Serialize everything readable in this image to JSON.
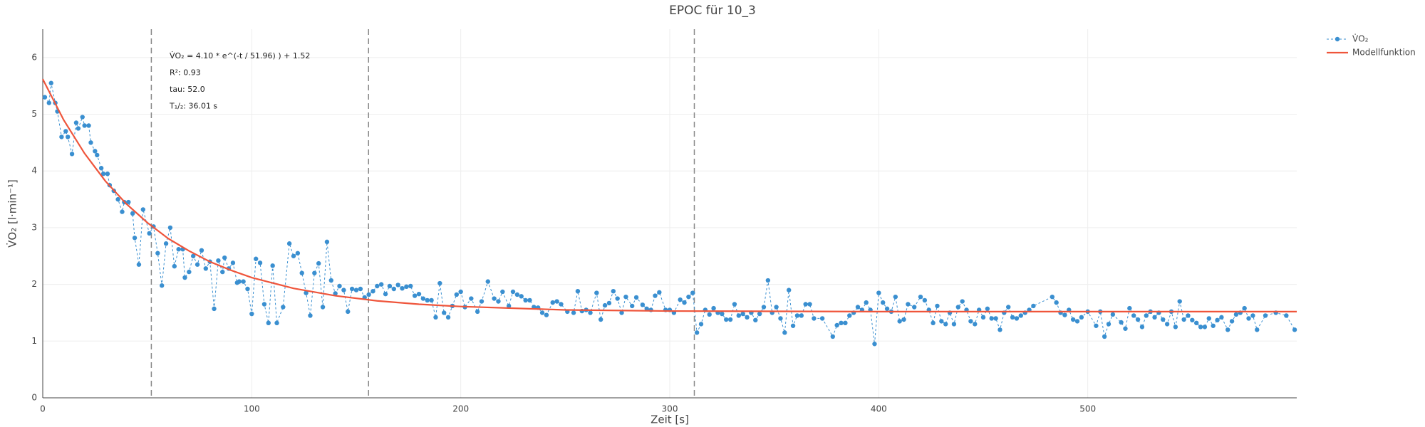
{
  "chart_data": {
    "type": "scatter",
    "title": "EPOC für 10_3",
    "xlabel": "Zeit [s]",
    "ylabel": "V̇O₂ [l·min⁻¹]",
    "xlim": [
      0,
      600
    ],
    "ylim": [
      0,
      6.5
    ],
    "xticks": [
      0,
      100,
      200,
      300,
      400,
      500
    ],
    "yticks": [
      0,
      1,
      2,
      3,
      4,
      5,
      6
    ],
    "grid": true,
    "legend": "top-right",
    "vlines": [
      51.96,
      155.88,
      311.76
    ],
    "annotations": [
      "V̇O₂ = 4.10 * e^(-t / 51.96) ) + 1.52",
      "R²: 0.93",
      "tau: 52.0",
      "T₁/₂: 36.01 s"
    ],
    "series": [
      {
        "name": "V̇O₂",
        "color": "#3a8fd0",
        "mode": "lines+markers",
        "x": [
          1,
          3,
          4,
          6,
          7,
          9,
          11,
          12,
          14,
          16,
          17,
          19,
          20,
          22,
          23,
          25,
          26,
          28,
          29,
          31,
          32,
          34,
          36,
          38,
          39,
          41,
          43,
          44,
          46,
          48,
          51,
          53,
          55,
          57,
          59,
          61,
          63,
          65,
          67,
          68,
          70,
          72,
          74,
          76,
          78,
          80,
          82,
          84,
          86,
          87,
          89,
          91,
          93,
          94,
          96,
          98,
          100,
          102,
          104,
          106,
          108,
          110,
          112,
          115,
          118,
          120,
          122,
          124,
          126,
          128,
          130,
          132,
          134,
          136,
          138,
          140,
          142,
          144,
          146,
          148,
          150,
          152,
          154,
          156,
          158,
          160,
          162,
          164,
          166,
          168,
          170,
          172,
          174,
          176,
          178,
          180,
          182,
          184,
          186,
          188,
          190,
          192,
          194,
          196,
          198,
          200,
          202,
          205,
          208,
          210,
          213,
          216,
          218,
          220,
          223,
          225,
          227,
          229,
          231,
          233,
          235,
          237,
          239,
          241,
          244,
          246,
          248,
          251,
          254,
          256,
          258,
          260,
          262,
          265,
          267,
          269,
          271,
          273,
          275,
          277,
          279,
          282,
          284,
          287,
          289,
          291,
          293,
          295,
          298,
          300,
          302,
          305,
          307,
          309,
          311,
          313,
          315,
          317,
          319,
          321,
          323,
          325,
          327,
          329,
          331,
          333,
          335,
          337,
          339,
          341,
          343,
          345,
          347,
          349,
          351,
          353,
          355,
          357,
          359,
          361,
          363,
          365,
          367,
          369,
          373,
          378,
          380,
          382,
          384,
          386,
          388,
          390,
          392,
          394,
          396,
          398,
          400,
          402,
          404,
          406,
          408,
          410,
          412,
          414,
          417,
          420,
          422,
          424,
          426,
          428,
          430,
          432,
          434,
          436,
          438,
          440,
          442,
          444,
          446,
          448,
          450,
          452,
          454,
          456,
          458,
          460,
          462,
          464,
          466,
          468,
          470,
          472,
          474,
          483,
          485,
          487,
          489,
          491,
          493,
          495,
          497,
          500,
          504,
          506,
          508,
          510,
          512,
          516,
          518,
          520,
          522,
          524,
          526,
          528,
          530,
          532,
          534,
          536,
          538,
          540,
          542,
          544,
          546,
          548,
          550,
          552,
          554,
          556,
          558,
          560,
          562,
          564,
          567,
          569,
          571,
          573,
          575,
          577,
          579,
          581,
          585,
          590,
          595,
          599
        ],
        "values": [
          5.3,
          5.2,
          5.55,
          5.2,
          5.05,
          4.6,
          4.7,
          4.6,
          4.3,
          4.85,
          4.75,
          4.95,
          4.8,
          4.8,
          4.5,
          4.35,
          4.28,
          4.05,
          3.95,
          3.95,
          3.75,
          3.65,
          3.5,
          3.28,
          3.45,
          3.45,
          3.25,
          2.82,
          2.35,
          3.32,
          2.9,
          3.02,
          2.55,
          1.98,
          2.72,
          3.0,
          2.32,
          2.62,
          2.62,
          2.12,
          2.22,
          2.5,
          2.35,
          2.6,
          2.28,
          2.4,
          1.57,
          2.42,
          2.22,
          2.47,
          2.28,
          2.38,
          2.03,
          2.05,
          2.05,
          1.92,
          1.48,
          2.45,
          2.38,
          1.65,
          1.32,
          2.33,
          1.32,
          1.6,
          2.72,
          2.5,
          2.55,
          2.2,
          1.85,
          1.45,
          2.2,
          2.37,
          1.6,
          2.75,
          2.07,
          1.84,
          1.97,
          1.9,
          1.52,
          1.92,
          1.9,
          1.92,
          1.77,
          1.82,
          1.88,
          1.97,
          2.0,
          1.83,
          1.97,
          1.92,
          1.99,
          1.93,
          1.96,
          1.97,
          1.8,
          1.83,
          1.75,
          1.72,
          1.72,
          1.42,
          2.02,
          1.5,
          1.42,
          1.62,
          1.82,
          1.87,
          1.6,
          1.75,
          1.52,
          1.7,
          2.05,
          1.75,
          1.7,
          1.87,
          1.62,
          1.87,
          1.82,
          1.79,
          1.72,
          1.72,
          1.6,
          1.59,
          1.5,
          1.46,
          1.68,
          1.7,
          1.65,
          1.52,
          1.5,
          1.88,
          1.53,
          1.55,
          1.5,
          1.85,
          1.38,
          1.63,
          1.67,
          1.88,
          1.75,
          1.5,
          1.78,
          1.62,
          1.77,
          1.64,
          1.57,
          1.55,
          1.8,
          1.86,
          1.55,
          1.55,
          1.5,
          1.73,
          1.68,
          1.78,
          1.85,
          1.15,
          1.3,
          1.55,
          1.47,
          1.58,
          1.5,
          1.48,
          1.38,
          1.38,
          1.65,
          1.45,
          1.48,
          1.42,
          1.5,
          1.37,
          1.48,
          1.6,
          2.07,
          1.5,
          1.6,
          1.4,
          1.15,
          1.9,
          1.27,
          1.45,
          1.45,
          1.65,
          1.65,
          1.4,
          1.4,
          1.08,
          1.28,
          1.32,
          1.32,
          1.45,
          1.5,
          1.6,
          1.55,
          1.68,
          1.55,
          0.95,
          1.85,
          1.68,
          1.57,
          1.52,
          1.78,
          1.35,
          1.38,
          1.65,
          1.6,
          1.78,
          1.72,
          1.55,
          1.32,
          1.62,
          1.35,
          1.3,
          1.5,
          1.3,
          1.6,
          1.7,
          1.55,
          1.35,
          1.3,
          1.55,
          1.42,
          1.57,
          1.4,
          1.4,
          1.2,
          1.5,
          1.6,
          1.42,
          1.4,
          1.45,
          1.5,
          1.55,
          1.62,
          1.78,
          1.68,
          1.5,
          1.46,
          1.55,
          1.38,
          1.35,
          1.42,
          1.52,
          1.27,
          1.52,
          1.08,
          1.3,
          1.47,
          1.33,
          1.22,
          1.58,
          1.45,
          1.38,
          1.25,
          1.45,
          1.52,
          1.42,
          1.5,
          1.38,
          1.3,
          1.52,
          1.25,
          1.7,
          1.38,
          1.45,
          1.37,
          1.32,
          1.25,
          1.25,
          1.4,
          1.27,
          1.37,
          1.42,
          1.2,
          1.35,
          1.47,
          1.5,
          1.58,
          1.4,
          1.45,
          1.2,
          1.45,
          1.5,
          1.45,
          1.2
        ]
      },
      {
        "name": "Modellfunktion",
        "color": "#ef553b",
        "mode": "lines",
        "x": [
          0,
          10,
          20,
          30,
          40,
          50,
          60,
          70,
          80,
          90,
          100,
          120,
          140,
          160,
          180,
          200,
          250,
          300,
          400,
          500,
          600
        ],
        "values": [
          5.62,
          4.9,
          4.31,
          3.82,
          3.42,
          3.09,
          2.81,
          2.59,
          2.4,
          2.25,
          2.12,
          1.93,
          1.8,
          1.71,
          1.65,
          1.61,
          1.55,
          1.53,
          1.52,
          1.52,
          1.52
        ]
      }
    ]
  }
}
